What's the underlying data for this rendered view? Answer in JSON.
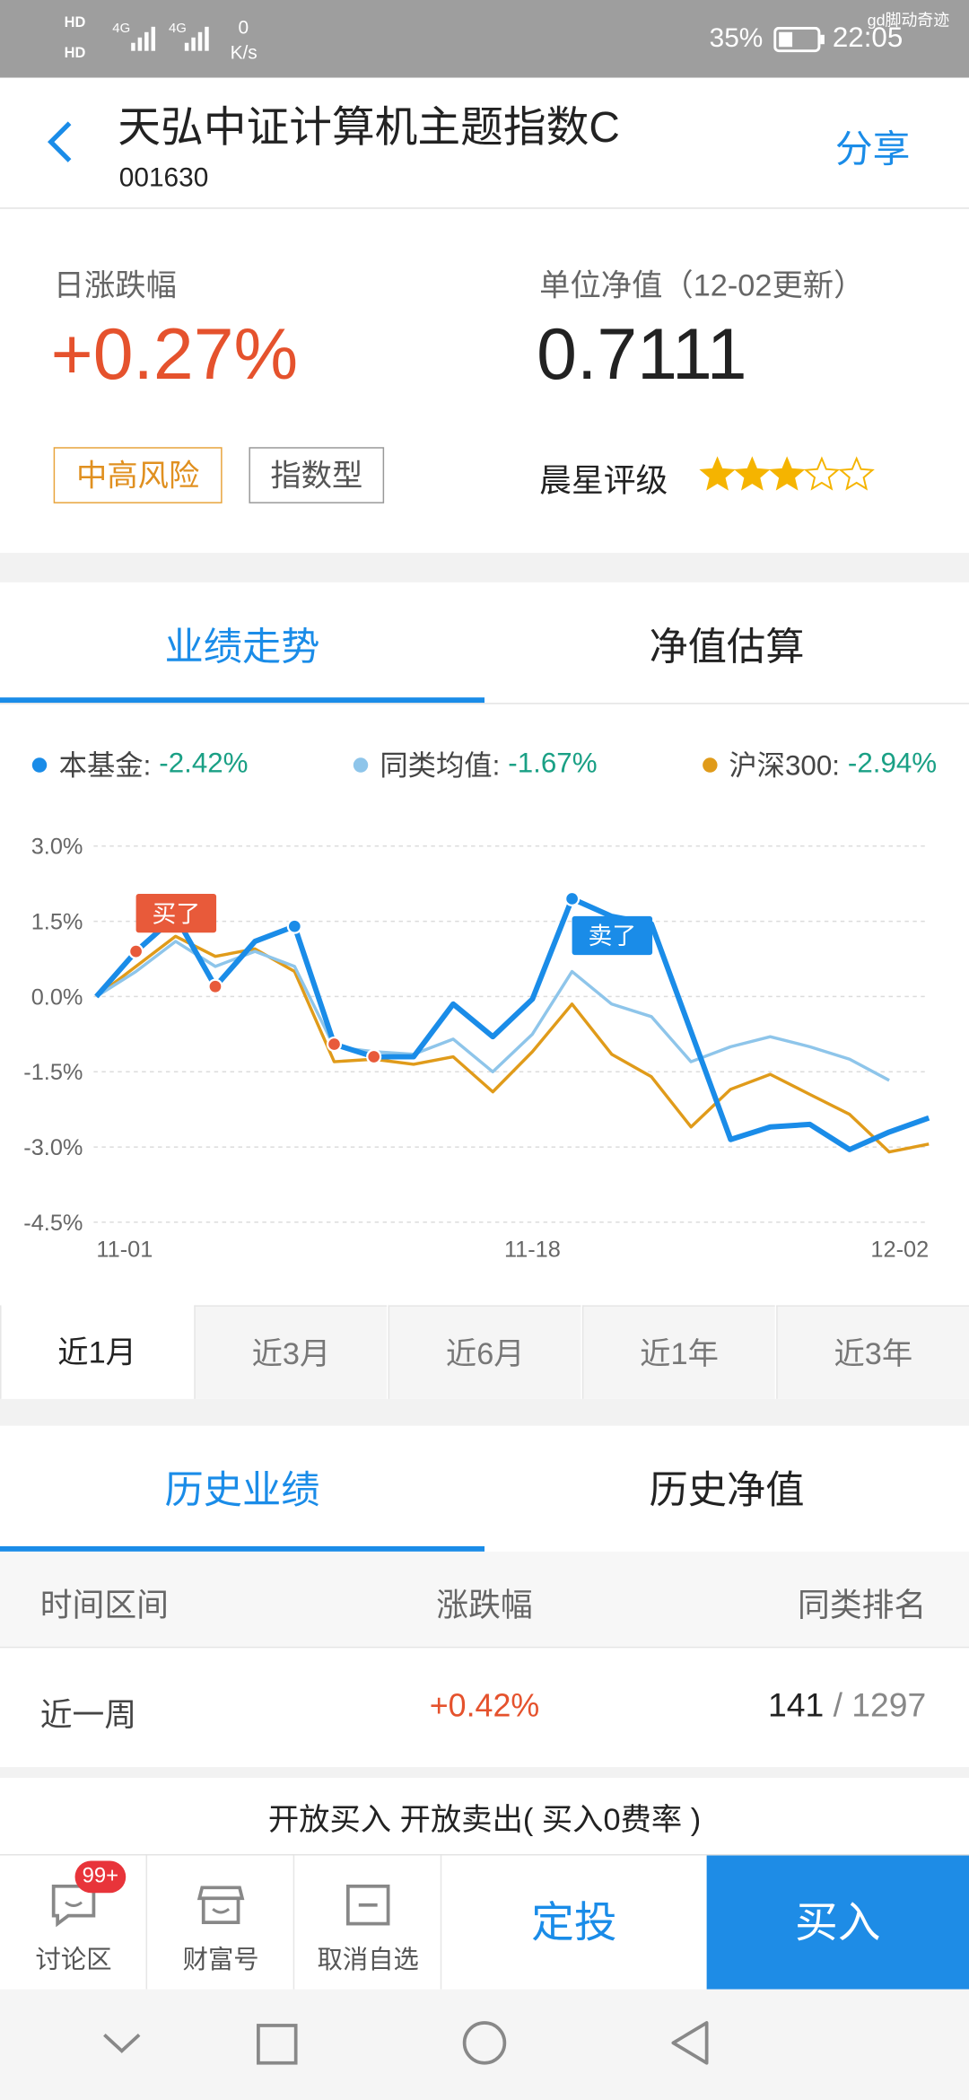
{
  "status_bar": {
    "hd": [
      "HD",
      "HD"
    ],
    "net": [
      "4G",
      "4G"
    ],
    "speed": "0",
    "speed_unit": "K/s",
    "battery": "35%",
    "time": "22:05",
    "watermark": "gd脚动奇迹"
  },
  "header": {
    "title": "天弘中证计算机主题指数C",
    "code": "001630",
    "share": "分享"
  },
  "summary": {
    "change_label": "日涨跌幅",
    "change": "+0.27%",
    "nav_label": "单位净值（12-02更新）",
    "nav": "0.7111",
    "tags": [
      "中高风险",
      "指数型"
    ],
    "rating_label": "晨星评级",
    "rating": 3,
    "rating_max": 5
  },
  "chart_tabs": {
    "items": [
      "业绩走势",
      "净值估算"
    ],
    "selected": 0
  },
  "chart_data": {
    "type": "line",
    "categories": [
      "11-01",
      null,
      null,
      null,
      null,
      null,
      null,
      null,
      null,
      null,
      null,
      "11-18",
      null,
      null,
      null,
      null,
      null,
      null,
      null,
      null,
      null,
      "12-02"
    ],
    "series": [
      {
        "name": "本基金:",
        "legend_value": "-2.42%",
        "color": "#1a8ce8",
        "values": [
          0,
          0.9,
          1.6,
          0.2,
          1.1,
          1.4,
          -0.95,
          -1.2,
          -1.2,
          -0.15,
          -0.8,
          -0.05,
          1.95,
          1.6,
          1.45,
          -0.7,
          -2.85,
          -2.6,
          -2.55,
          -3.05,
          -2.7,
          -2.42
        ]
      },
      {
        "name": "同类均值:",
        "legend_value": "-1.67%",
        "color": "#8ec5ea",
        "values": [
          0,
          0.5,
          1.1,
          0.6,
          0.9,
          0.6,
          -1.0,
          -1.1,
          -1.15,
          -0.85,
          -1.5,
          -0.75,
          0.5,
          -0.15,
          -0.4,
          -1.3,
          -1.0,
          -0.8,
          -1.0,
          -1.25,
          -1.67,
          null
        ]
      },
      {
        "name": "沪深300:",
        "legend_value": "-2.94%",
        "color": "#e09b1a",
        "values": [
          0,
          0.6,
          1.2,
          0.8,
          0.95,
          0.5,
          -1.3,
          -1.25,
          -1.35,
          -1.2,
          -1.9,
          -1.1,
          -0.15,
          -1.15,
          -1.6,
          -2.6,
          -1.85,
          -1.55,
          -1.95,
          -2.35,
          -3.1,
          -2.94
        ]
      }
    ],
    "ylim": [
      -4.5,
      3.0
    ],
    "yticks": [
      {
        "value": 3,
        "label": "3.0%"
      },
      {
        "value": 1.5,
        "label": "1.5%"
      },
      {
        "value": 0,
        "label": "0.0%"
      },
      {
        "value": -1.5,
        "label": "-1.5%"
      },
      {
        "value": -3,
        "label": "-3.0%"
      },
      {
        "value": -4.5,
        "label": "-4.5%"
      }
    ],
    "grid": true,
    "buy_points": [
      1,
      3,
      6,
      7
    ],
    "buy_color": "#e85a3a",
    "sell_points": [
      5,
      12
    ],
    "sell_color": "#1a8ce8",
    "annotations": [
      {
        "text": "买了",
        "index": 1,
        "color": "#e85a3a"
      },
      {
        "text": "卖了",
        "index": 12,
        "color": "#1a8ce8"
      }
    ]
  },
  "period_tabs": {
    "items": [
      "近1月",
      "近3月",
      "近6月",
      "近1年",
      "近3年"
    ],
    "selected": 0
  },
  "history_tabs": {
    "items": [
      "历史业绩",
      "历史净值"
    ],
    "selected": 0
  },
  "history_table": {
    "header": [
      "时间区间",
      "涨跌幅",
      "同类排名"
    ],
    "rows": [
      {
        "period": "近一周",
        "change": "+0.42%",
        "rank": "141",
        "total": "/ 1297"
      }
    ]
  },
  "notice": "开放买入 开放卖出( 买入0费率 )",
  "bottom_bar": {
    "buttons": [
      "讨论区",
      "财富号",
      "取消自选"
    ],
    "badge": "99+",
    "plan": "定投",
    "buy": "买入"
  }
}
